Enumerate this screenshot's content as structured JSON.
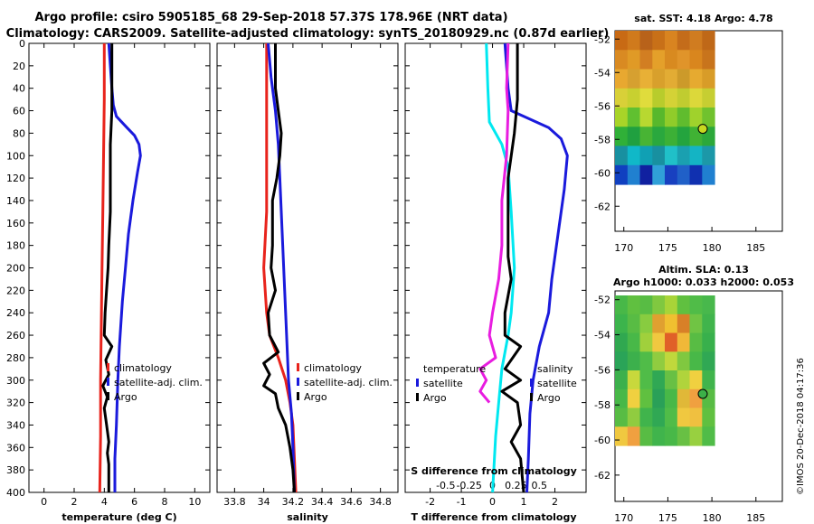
{
  "title_line1": "Argo profile: csiro 5905185_68 29-Sep-2018 57.37S 178.96E (NRT data)",
  "title_line2": "Climatology: CARS2009. Satellite-adjusted climatology: synTS_20180929.nc (0.87d earlier)",
  "credit": "©IMOS 20-Dec-2018 04:17:36",
  "colors": {
    "climatology": "#e8231c",
    "satellite": "#1a1adc",
    "argo": "#000000",
    "temp_diff": "#00e8f0",
    "sal_diff": "#e81ce0"
  },
  "chart_data": [
    {
      "id": "temperature",
      "type": "line",
      "xlabel": "temperature (deg C)",
      "ylabel": "",
      "xlim": [
        -1,
        11
      ],
      "ylim": [
        400,
        0
      ],
      "xticks": [
        0,
        2,
        4,
        6,
        8,
        10
      ],
      "yticks": [
        0,
        20,
        40,
        60,
        80,
        100,
        120,
        140,
        160,
        180,
        200,
        220,
        240,
        260,
        280,
        300,
        320,
        340,
        360,
        380,
        400
      ],
      "legend": [
        "climatology",
        "satellite-adj. clim.",
        "Argo"
      ],
      "series": [
        {
          "name": "climatology",
          "color": "#e8231c",
          "points": [
            [
              4.0,
              0
            ],
            [
              4.0,
              50
            ],
            [
              3.95,
              100
            ],
            [
              3.9,
              150
            ],
            [
              3.85,
              200
            ],
            [
              3.8,
              250
            ],
            [
              3.75,
              300
            ],
            [
              3.75,
              350
            ],
            [
              3.7,
              400
            ]
          ]
        },
        {
          "name": "satellite-adj. clim.",
          "color": "#1a1adc",
          "points": [
            [
              4.3,
              0
            ],
            [
              4.4,
              20
            ],
            [
              4.5,
              40
            ],
            [
              4.6,
              55
            ],
            [
              4.8,
              65
            ],
            [
              5.5,
              75
            ],
            [
              6.0,
              82
            ],
            [
              6.3,
              90
            ],
            [
              6.4,
              100
            ],
            [
              6.2,
              115
            ],
            [
              5.9,
              140
            ],
            [
              5.6,
              170
            ],
            [
              5.4,
              200
            ],
            [
              5.2,
              230
            ],
            [
              5.0,
              270
            ],
            [
              4.9,
              300
            ],
            [
              4.8,
              340
            ],
            [
              4.7,
              370
            ],
            [
              4.7,
              400
            ]
          ]
        },
        {
          "name": "Argo",
          "color": "#000000",
          "points": [
            [
              4.5,
              0
            ],
            [
              4.5,
              60
            ],
            [
              4.4,
              90
            ],
            [
              4.4,
              120
            ],
            [
              4.4,
              150
            ],
            [
              4.3,
              180
            ],
            [
              4.25,
              200
            ],
            [
              4.15,
              220
            ],
            [
              4.05,
              240
            ],
            [
              4.0,
              260
            ],
            [
              4.5,
              270
            ],
            [
              4.1,
              282
            ],
            [
              4.3,
              295
            ],
            [
              3.9,
              305
            ],
            [
              4.2,
              315
            ],
            [
              4.0,
              325
            ],
            [
              4.1,
              335
            ],
            [
              4.2,
              345
            ],
            [
              4.3,
              355
            ],
            [
              4.2,
              365
            ],
            [
              4.3,
              375
            ],
            [
              4.3,
              400
            ]
          ]
        }
      ]
    },
    {
      "id": "salinity",
      "type": "line",
      "xlabel": "salinity",
      "ylabel": "",
      "xlim": [
        33.68,
        34.92
      ],
      "ylim": [
        400,
        0
      ],
      "xticks": [
        33.8,
        34,
        34.2,
        34.4,
        34.6,
        34.8
      ],
      "legend": [
        "climatology",
        "satellite-adj. clim.",
        "Argo"
      ],
      "series": [
        {
          "name": "climatology",
          "color": "#e8231c",
          "points": [
            [
              34.02,
              0
            ],
            [
              34.02,
              60
            ],
            [
              34.02,
              100
            ],
            [
              34.02,
              150
            ],
            [
              34.0,
              200
            ],
            [
              34.02,
              240
            ],
            [
              34.04,
              260
            ],
            [
              34.1,
              280
            ],
            [
              34.15,
              300
            ],
            [
              34.18,
              320
            ],
            [
              34.2,
              340
            ],
            [
              34.21,
              370
            ],
            [
              34.22,
              400
            ]
          ]
        },
        {
          "name": "satellite-adj. clim.",
          "color": "#1a1adc",
          "points": [
            [
              34.03,
              0
            ],
            [
              34.05,
              30
            ],
            [
              34.08,
              60
            ],
            [
              34.1,
              90
            ],
            [
              34.11,
              120
            ],
            [
              34.12,
              150
            ],
            [
              34.13,
              180
            ],
            [
              34.14,
              210
            ],
            [
              34.15,
              240
            ],
            [
              34.16,
              270
            ],
            [
              34.17,
              300
            ],
            [
              34.19,
              330
            ],
            [
              34.2,
              360
            ],
            [
              34.21,
              400
            ]
          ]
        },
        {
          "name": "Argo",
          "color": "#000000",
          "points": [
            [
              34.08,
              0
            ],
            [
              34.08,
              40
            ],
            [
              34.1,
              60
            ],
            [
              34.12,
              80
            ],
            [
              34.11,
              100
            ],
            [
              34.09,
              120
            ],
            [
              34.06,
              140
            ],
            [
              34.06,
              160
            ],
            [
              34.06,
              180
            ],
            [
              34.05,
              200
            ],
            [
              34.08,
              220
            ],
            [
              34.03,
              240
            ],
            [
              34.04,
              260
            ],
            [
              34.1,
              275
            ],
            [
              34.0,
              285
            ],
            [
              34.04,
              295
            ],
            [
              34.0,
              305
            ],
            [
              34.08,
              312
            ],
            [
              34.1,
              325
            ],
            [
              34.15,
              340
            ],
            [
              34.18,
              360
            ],
            [
              34.2,
              380
            ],
            [
              34.21,
              400
            ]
          ]
        }
      ]
    },
    {
      "id": "difference",
      "type": "line",
      "xlabel": "T difference from climatology",
      "top_label": "S difference from climatology",
      "ylabel": "",
      "xlim": [
        -2.8,
        3.0
      ],
      "ylim": [
        400,
        0
      ],
      "xticks": [
        -2,
        -1,
        0,
        1,
        2
      ],
      "secondary_xticks": [
        "-0.5",
        "-0.25",
        "0",
        "0.25",
        "0.5"
      ],
      "legend_left": [
        "temperature",
        "satellite",
        "Argo"
      ],
      "legend_right": [
        "salinity",
        "satellite",
        "Argo"
      ],
      "series": [
        {
          "name": "temperature satellite",
          "color": "#00e8f0",
          "points": [
            [
              -0.2,
              0
            ],
            [
              -0.15,
              40
            ],
            [
              -0.1,
              70
            ],
            [
              0.3,
              90
            ],
            [
              0.5,
              110
            ],
            [
              0.6,
              150
            ],
            [
              0.7,
              200
            ],
            [
              0.6,
              240
            ],
            [
              0.5,
              260
            ],
            [
              0.3,
              290
            ],
            [
              0.2,
              320
            ],
            [
              0.1,
              350
            ],
            [
              0.0,
              400
            ]
          ]
        },
        {
          "name": "salinity satellite",
          "color": "#1a1adc",
          "points": [
            [
              0.4,
              0
            ],
            [
              0.5,
              40
            ],
            [
              0.6,
              60
            ],
            [
              1.0,
              65
            ],
            [
              1.8,
              75
            ],
            [
              2.2,
              85
            ],
            [
              2.4,
              100
            ],
            [
              2.3,
              130
            ],
            [
              2.1,
              170
            ],
            [
              1.9,
              210
            ],
            [
              1.8,
              240
            ],
            [
              1.5,
              270
            ],
            [
              1.3,
              300
            ],
            [
              1.2,
              330
            ],
            [
              1.15,
              370
            ],
            [
              1.1,
              400
            ]
          ]
        },
        {
          "name": "temperature Argo",
          "color": "#000000",
          "points": [
            [
              0.8,
              0
            ],
            [
              0.8,
              50
            ],
            [
              0.7,
              80
            ],
            [
              0.5,
              120
            ],
            [
              0.5,
              160
            ],
            [
              0.5,
              190
            ],
            [
              0.6,
              210
            ],
            [
              0.4,
              240
            ],
            [
              0.4,
              260
            ],
            [
              0.9,
              270
            ],
            [
              0.4,
              290
            ],
            [
              0.9,
              300
            ],
            [
              0.3,
              310
            ],
            [
              0.8,
              320
            ],
            [
              0.9,
              340
            ],
            [
              0.6,
              355
            ],
            [
              0.9,
              370
            ],
            [
              1.0,
              400
            ]
          ]
        },
        {
          "name": "salinity Argo",
          "color": "#e81ce0",
          "points": [
            [
              0.5,
              0
            ],
            [
              0.45,
              40
            ],
            [
              0.5,
              60
            ],
            [
              0.45,
              100
            ],
            [
              0.3,
              140
            ],
            [
              0.3,
              180
            ],
            [
              0.2,
              210
            ],
            [
              0.0,
              240
            ],
            [
              -0.1,
              260
            ],
            [
              0.1,
              280
            ],
            [
              -0.4,
              290
            ],
            [
              -0.2,
              300
            ],
            [
              -0.4,
              310
            ],
            [
              -0.1,
              320
            ]
          ]
        }
      ]
    },
    {
      "id": "sst_map",
      "type": "heatmap",
      "title": "sat. SST: 4.18 Argo: 4.78",
      "xlim": [
        169,
        188
      ],
      "ylim": [
        -63.5,
        -51.5
      ],
      "xticks": [
        170,
        175,
        180,
        185
      ],
      "yticks": [
        -52,
        -54,
        -56,
        -58,
        -60,
        -62
      ],
      "marker": {
        "lon": 178.96,
        "lat": -57.37
      },
      "grid": [
        [
          "#c86a14",
          "#d07a1c",
          "#b8621a",
          "#c87018",
          "#d98420",
          "#c46c1a",
          "#d07c20",
          "#bf6818"
        ],
        [
          "#d98a22",
          "#e09a26",
          "#d27e22",
          "#e4a02a",
          "#d88a20",
          "#e0942a",
          "#d9861e",
          "#c8741c"
        ],
        [
          "#e8a830",
          "#d6a030",
          "#e8b036",
          "#d8a02c",
          "#e2ac34",
          "#cc9a2a",
          "#e6aa30",
          "#d89c28"
        ],
        [
          "#d8d038",
          "#c8d030",
          "#e0dc3c",
          "#b8cc2c",
          "#d4d236",
          "#c0cc30",
          "#dcd83a",
          "#c6ce32"
        ],
        [
          "#a8d428",
          "#60c030",
          "#b8d830",
          "#58b82c",
          "#90cc2a",
          "#60bc2e",
          "#a0d22c",
          "#70c22e"
        ],
        [
          "#30b038",
          "#20a040",
          "#48b434",
          "#2aa83e",
          "#3cb036",
          "#24a43e",
          "#40b234",
          "#2ca83a"
        ],
        [
          "#1890a0",
          "#10b8c8",
          "#10a0b4",
          "#1890a0",
          "#20c0c8",
          "#1aa0b0",
          "#14b4c4",
          "#1c98a8"
        ],
        [
          "#1040c0",
          "#2080d0",
          "#1020a0",
          "#30a0d8",
          "#1840c0",
          "#2060c8",
          "#1030b0",
          "#2080d0"
        ]
      ]
    },
    {
      "id": "sla_map",
      "type": "heatmap",
      "title": "Altim. SLA: 0.13",
      "subtitle": "Argo h1000: 0.033 h2000: 0.053",
      "xlim": [
        169,
        188
      ],
      "ylim": [
        -63.5,
        -51.5
      ],
      "xticks": [
        170,
        175,
        180,
        185
      ],
      "yticks": [
        -52,
        -54,
        -56,
        -58,
        -60,
        -62
      ],
      "marker": {
        "lon": 178.96,
        "lat": -57.37
      },
      "grid": [
        [
          "#48b848",
          "#60c040",
          "#58bc44",
          "#80c840",
          "#a8d438",
          "#60c040",
          "#50bc48",
          "#48b84c"
        ],
        [
          "#3cb44c",
          "#58bc44",
          "#88cc40",
          "#e0a030",
          "#f0c030",
          "#d88028",
          "#70c444",
          "#40b44c"
        ],
        [
          "#30a850",
          "#48b848",
          "#a0d03c",
          "#f0c840",
          "#e06028",
          "#f0b838",
          "#58bc44",
          "#38b04c"
        ],
        [
          "#2aa458",
          "#3cb04c",
          "#50bc48",
          "#90cc40",
          "#c0d83c",
          "#80c840",
          "#48b848",
          "#30a854"
        ],
        [
          "#3cb04c",
          "#c8d83c",
          "#50bc48",
          "#30a854",
          "#68c044",
          "#b0d43c",
          "#f0d040",
          "#40b44c"
        ],
        [
          "#48b848",
          "#f0d040",
          "#60c040",
          "#2aa058",
          "#48b848",
          "#e0b838",
          "#f0a040",
          "#58bc44"
        ],
        [
          "#58bc44",
          "#90cc40",
          "#40b44c",
          "#30a854",
          "#50bc48",
          "#f0c840",
          "#f0c040",
          "#60c040"
        ],
        [
          "#f0c840",
          "#f0a040",
          "#58bc44",
          "#40b44c",
          "#48b848",
          "#68c044",
          "#98d040",
          "#50bc48"
        ]
      ]
    }
  ]
}
